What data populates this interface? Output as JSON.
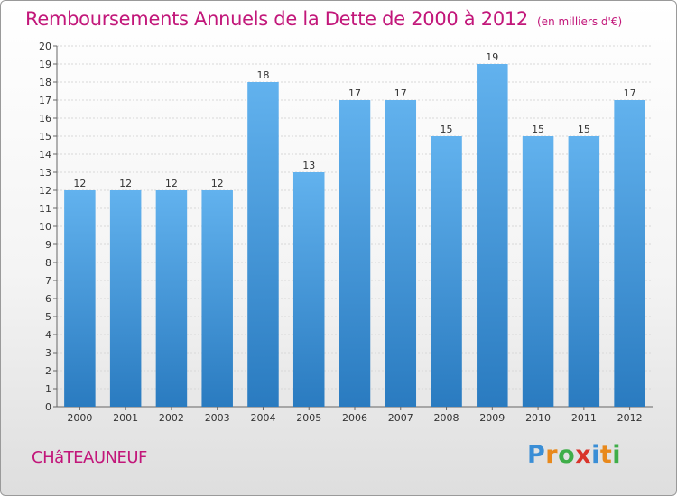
{
  "header": {
    "title": "Remboursements Annuels de la Dette de 2000 à 2012",
    "unit": "(en milliers d'€)"
  },
  "footer": {
    "city": "CHâTEAUNEUF",
    "brand": {
      "letters": [
        {
          "char": "P",
          "color": "#3a8ed6"
        },
        {
          "char": "r",
          "color": "#e8891c"
        },
        {
          "char": "o",
          "color": "#3fae49"
        },
        {
          "char": "x",
          "color": "#d9342b"
        },
        {
          "char": "i",
          "color": "#3a8ed6"
        },
        {
          "char": "t",
          "color": "#e8891c"
        },
        {
          "char": "i",
          "color": "#3fae49"
        }
      ]
    }
  },
  "chart_data": {
    "type": "bar",
    "categories": [
      "2000",
      "2001",
      "2002",
      "2003",
      "2004",
      "2005",
      "2006",
      "2007",
      "2008",
      "2009",
      "2010",
      "2011",
      "2012"
    ],
    "values": [
      12,
      12,
      12,
      12,
      18,
      13,
      17,
      17,
      15,
      19,
      15,
      15,
      17
    ],
    "data_labels": [
      "12",
      "12",
      "12",
      "12",
      "18",
      "13",
      "17",
      "17",
      "15",
      "19",
      "15",
      "15",
      "17"
    ],
    "yticks": [
      0,
      1,
      2,
      3,
      4,
      5,
      6,
      7,
      8,
      9,
      10,
      11,
      12,
      13,
      14,
      15,
      16,
      17,
      18,
      19,
      20
    ],
    "ylim": [
      0,
      20
    ],
    "grid": "horizontal",
    "colors": {
      "bar_light": "#62b2ee",
      "bar_dark": "#2a7bc0",
      "grid": "#d8d8d8",
      "axis": "#666666",
      "label": "#333333"
    }
  }
}
